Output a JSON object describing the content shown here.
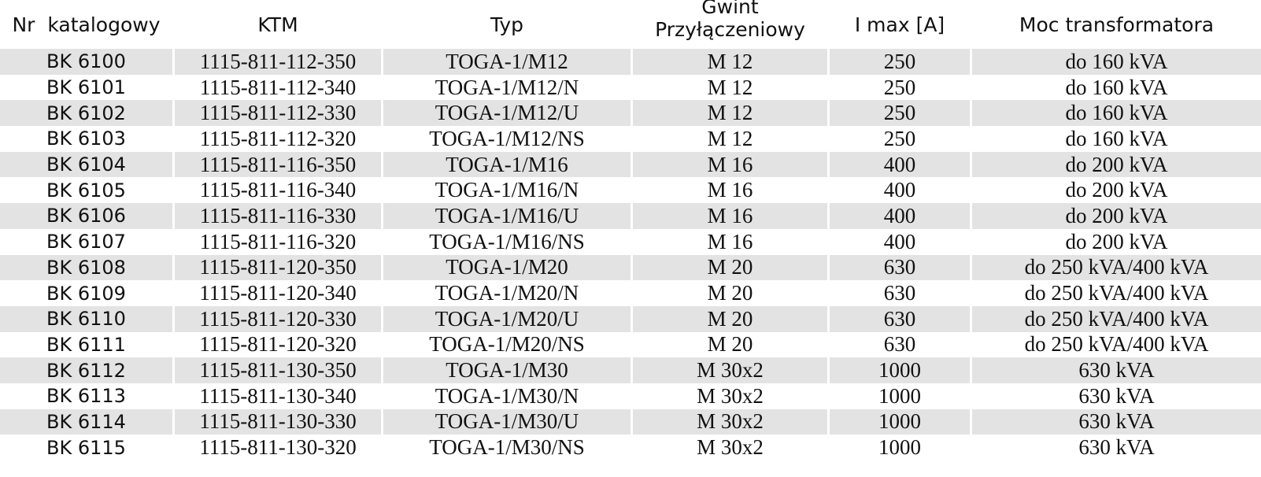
{
  "table": {
    "headers": {
      "nr": "Nr  katalogowy",
      "ktm": "KTM",
      "typ": "Typ",
      "gwint_line1": "Gwint",
      "gwint_line2": "Przyłączeniowy",
      "imax": "I max [A]",
      "moc": "Moc transformatora"
    },
    "rows": [
      {
        "nr": "BK 6100",
        "ktm": "1115-811-112-350",
        "typ": "TOGA-1/M12",
        "gwint": "M 12",
        "imax": "250",
        "moc": "do 160 kVA"
      },
      {
        "nr": "BK 6101",
        "ktm": "1115-811-112-340",
        "typ": "TOGA-1/M12/N",
        "gwint": "M 12",
        "imax": "250",
        "moc": "do 160 kVA"
      },
      {
        "nr": "BK 6102",
        "ktm": "1115-811-112-330",
        "typ": "TOGA-1/M12/U",
        "gwint": "M 12",
        "imax": "250",
        "moc": "do 160 kVA"
      },
      {
        "nr": "BK 6103",
        "ktm": "1115-811-112-320",
        "typ": "TOGA-1/M12/NS",
        "gwint": "M 12",
        "imax": "250",
        "moc": "do 160 kVA"
      },
      {
        "nr": "BK 6104",
        "ktm": "1115-811-116-350",
        "typ": "TOGA-1/M16",
        "gwint": "M 16",
        "imax": "400",
        "moc": "do 200 kVA"
      },
      {
        "nr": "BK 6105",
        "ktm": "1115-811-116-340",
        "typ": "TOGA-1/M16/N",
        "gwint": "M 16",
        "imax": "400",
        "moc": "do 200 kVA"
      },
      {
        "nr": "BK 6106",
        "ktm": "1115-811-116-330",
        "typ": "TOGA-1/M16/U",
        "gwint": "M 16",
        "imax": "400",
        "moc": "do 200 kVA"
      },
      {
        "nr": "BK 6107",
        "ktm": "1115-811-116-320",
        "typ": "TOGA-1/M16/NS",
        "gwint": "M 16",
        "imax": "400",
        "moc": "do 200 kVA"
      },
      {
        "nr": "BK 6108",
        "ktm": "1115-811-120-350",
        "typ": "TOGA-1/M20",
        "gwint": "M 20",
        "imax": "630",
        "moc": "do 250 kVA/400 kVA"
      },
      {
        "nr": "BK 6109",
        "ktm": "1115-811-120-340",
        "typ": "TOGA-1/M20/N",
        "gwint": "M 20",
        "imax": "630",
        "moc": "do 250 kVA/400 kVA"
      },
      {
        "nr": "BK 6110",
        "ktm": "1115-811-120-330",
        "typ": "TOGA-1/M20/U",
        "gwint": "M 20",
        "imax": "630",
        "moc": "do 250 kVA/400 kVA"
      },
      {
        "nr": "BK 6111",
        "ktm": "1115-811-120-320",
        "typ": "TOGA-1/M20/NS",
        "gwint": "M 20",
        "imax": "630",
        "moc": "do 250 kVA/400 kVA"
      },
      {
        "nr": "BK 6112",
        "ktm": "1115-811-130-350",
        "typ": "TOGA-1/M30",
        "gwint": "M 30x2",
        "imax": "1000",
        "moc": "630 kVA"
      },
      {
        "nr": "BK 6113",
        "ktm": "1115-811-130-340",
        "typ": "TOGA-1/M30/N",
        "gwint": "M 30x2",
        "imax": "1000",
        "moc": "630 kVA"
      },
      {
        "nr": "BK 6114",
        "ktm": "1115-811-130-330",
        "typ": "TOGA-1/M30/U",
        "gwint": "M 30x2",
        "imax": "1000",
        "moc": "630 kVA"
      },
      {
        "nr": "BK 6115",
        "ktm": "1115-811-130-320",
        "typ": "TOGA-1/M30/NS",
        "gwint": "M 30x2",
        "imax": "1000",
        "moc": "630 kVA"
      }
    ]
  },
  "colors": {
    "row_shade": "#e3e3e3",
    "text": "#111111",
    "background": "#ffffff"
  }
}
